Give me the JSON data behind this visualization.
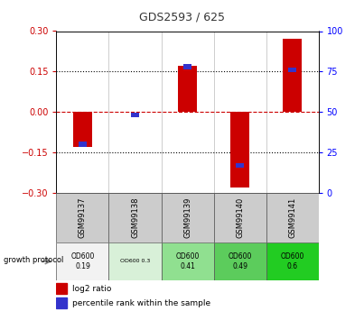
{
  "title": "GDS2593 / 625",
  "samples": [
    "GSM99137",
    "GSM99138",
    "GSM99139",
    "GSM99140",
    "GSM99141"
  ],
  "log2_ratio": [
    -0.13,
    0.0,
    0.17,
    -0.28,
    0.27
  ],
  "percentile_rank_pct": [
    30,
    48,
    78,
    17,
    76
  ],
  "ylim": [
    -0.3,
    0.3
  ],
  "yticks_left": [
    -0.3,
    -0.15,
    0.0,
    0.15,
    0.3
  ],
  "yticks_right": [
    0,
    25,
    50,
    75,
    100
  ],
  "red_bar_color": "#cc0000",
  "blue_bar_color": "#3333cc",
  "zero_line_color": "#cc0000",
  "dotted_color": "#000000",
  "protocol_labels": [
    "OD600\n0.19",
    "OD600 0.3",
    "OD600\n0.41",
    "OD600\n0.49",
    "OD600\n0.6"
  ],
  "protocol_colors": [
    "#f2f2f2",
    "#d8f0d8",
    "#90e090",
    "#5ccc5c",
    "#22cc22"
  ],
  "sample_bg_color": "#cccccc",
  "title_color": "#333333"
}
